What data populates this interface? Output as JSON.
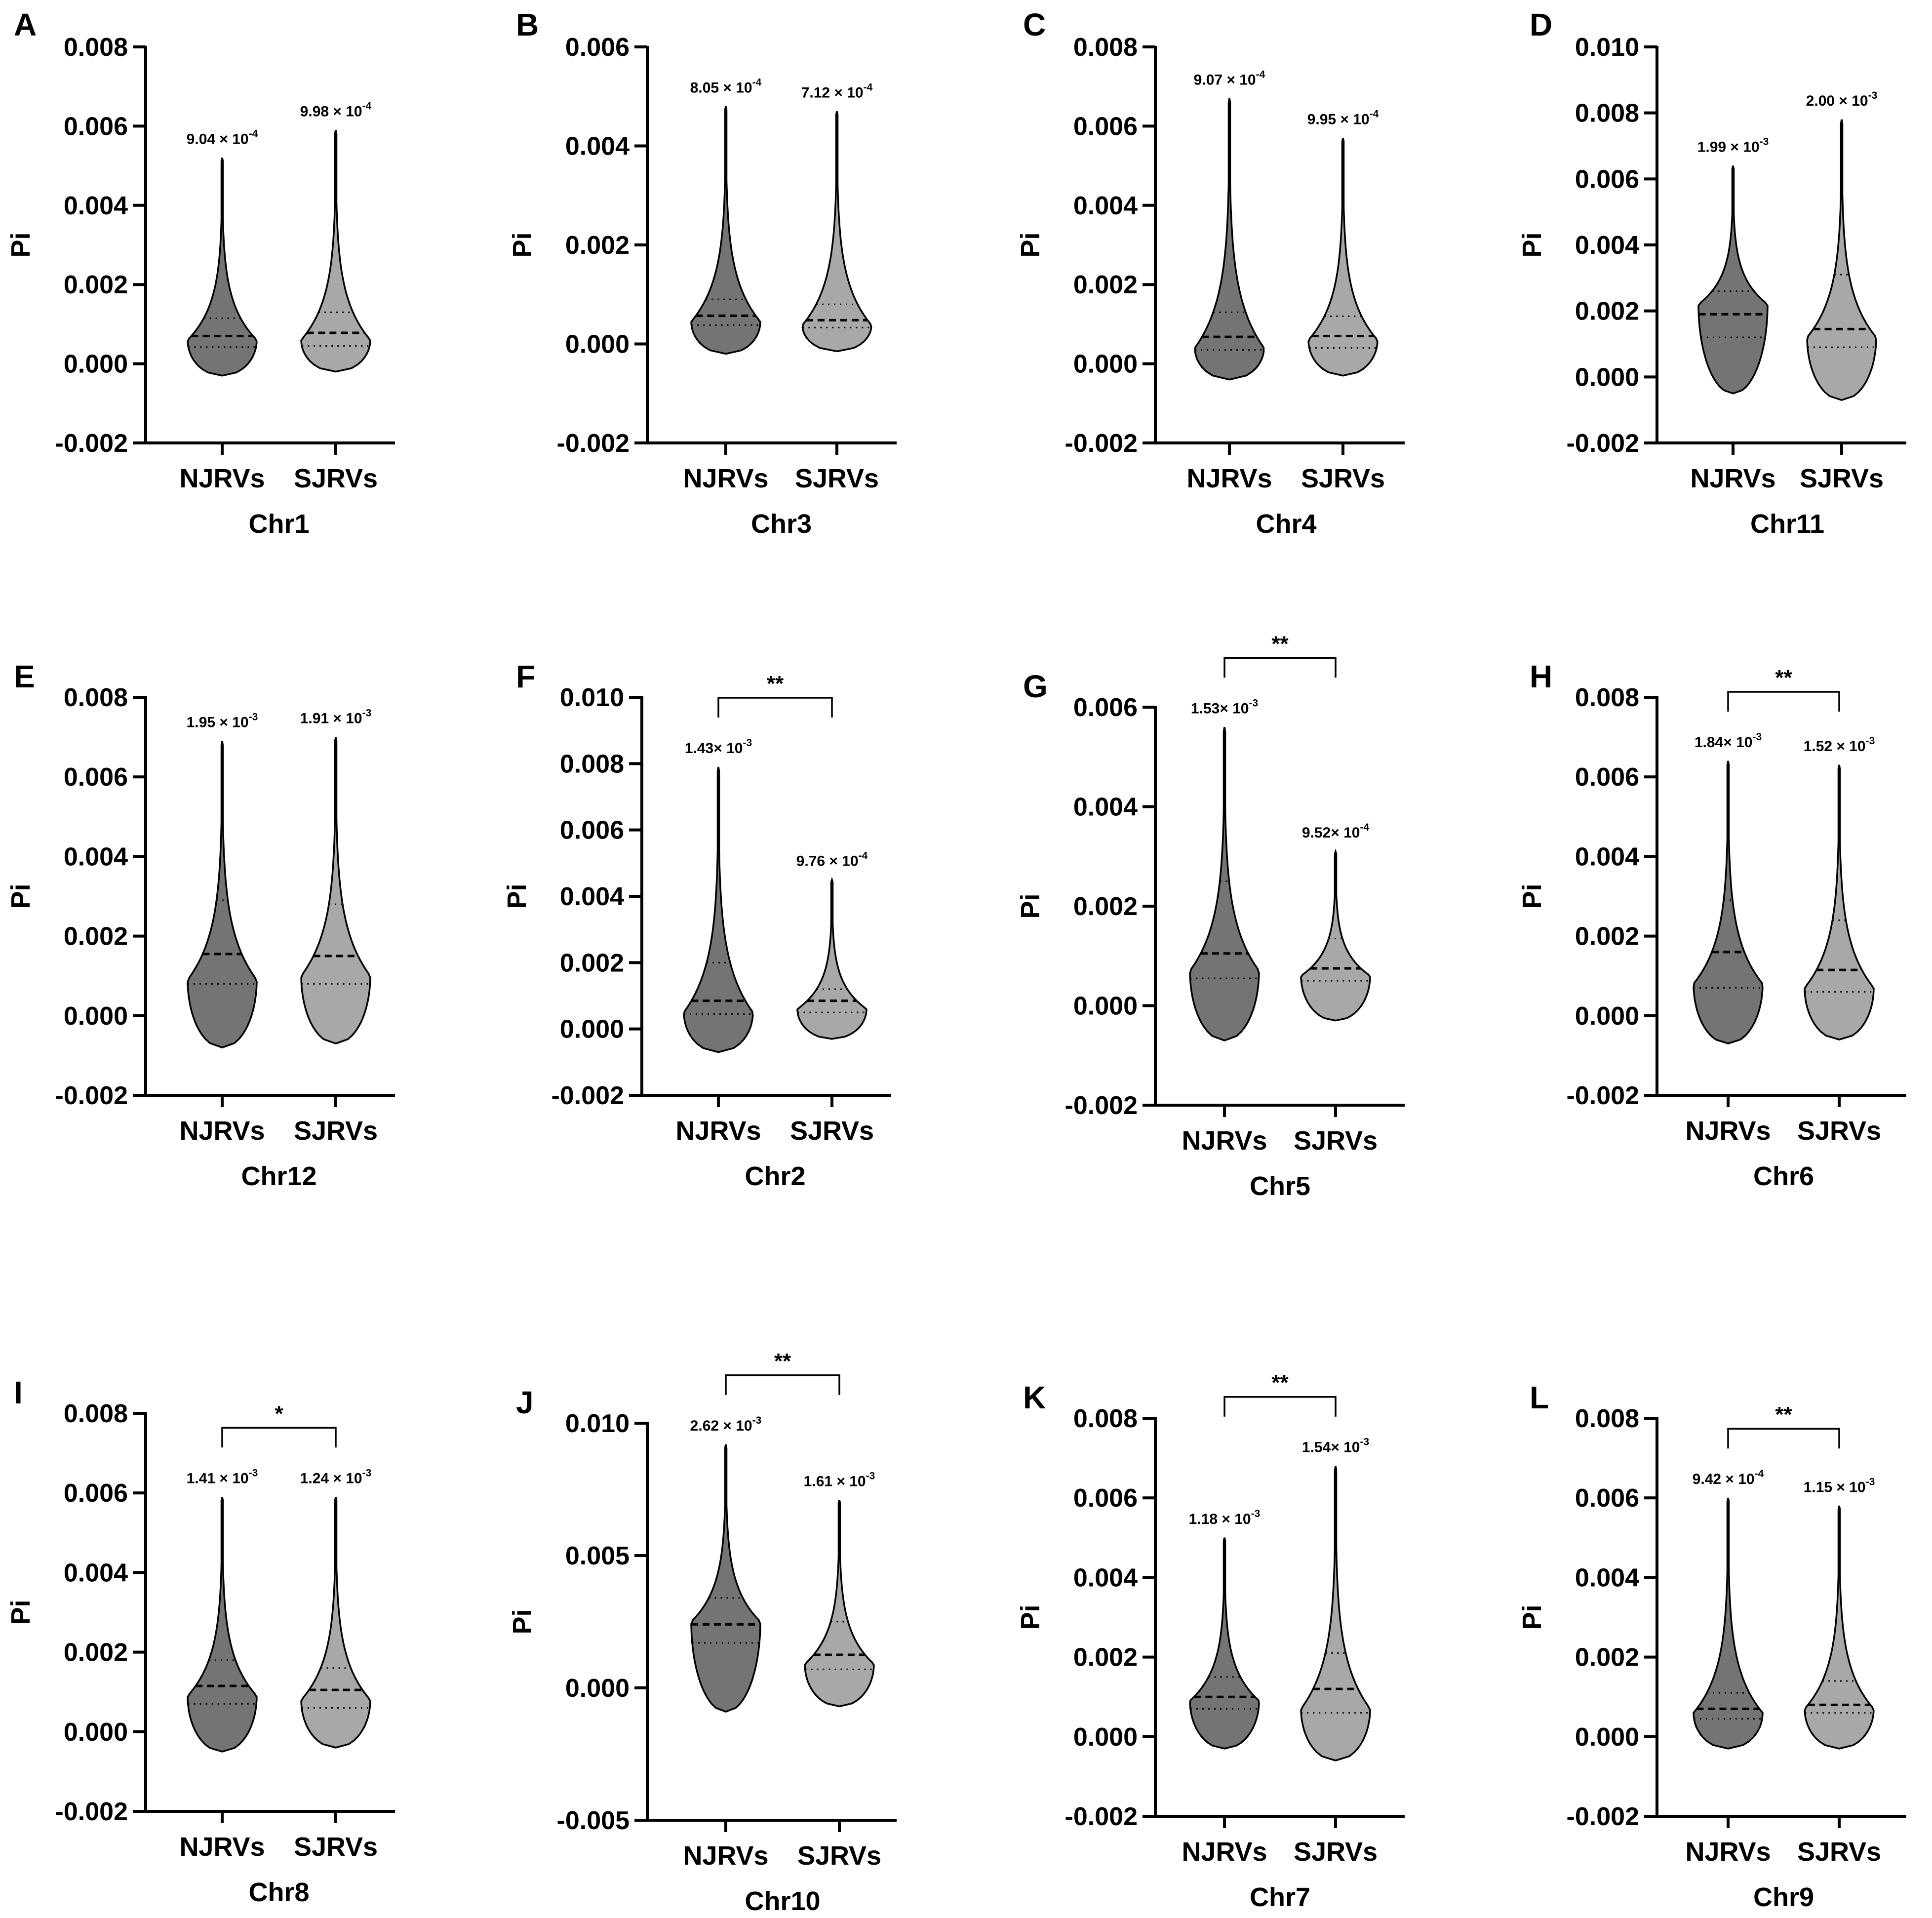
{
  "colors": {
    "njrvs_fill": "#747474",
    "sjrvs_fill": "#a8a8a8",
    "axis": "#000000"
  },
  "chart_data": [
    {
      "panel": "A",
      "type": "violin",
      "title": "",
      "xlabel": "Chr1",
      "ylabel": "Pi",
      "categories": [
        "NJRVs",
        "SJRVs"
      ],
      "ylim": [
        -0.002,
        0.008
      ],
      "yticks": [
        "0.008",
        "0.006",
        "0.004",
        "0.002",
        "0.000",
        "-0.002"
      ],
      "series": [
        {
          "name": "NJRVs",
          "min": -0.0003,
          "max": 0.0052,
          "q1": 0.00042,
          "median": 0.0007,
          "q3": 0.00115,
          "mode": 0.0006,
          "mean_label": "9.04 × 10",
          "mean_exp": "-4"
        },
        {
          "name": "SJRVs",
          "min": -0.0002,
          "max": 0.0059,
          "q1": 0.00045,
          "median": 0.00078,
          "q3": 0.0013,
          "mode": 0.0006,
          "mean_label": "9.98 × 10",
          "mean_exp": "-4"
        }
      ],
      "significance": ""
    },
    {
      "panel": "B",
      "type": "violin",
      "title": "",
      "xlabel": "Chr3",
      "ylabel": "Pi",
      "categories": [
        "NJRVs",
        "SJRVs"
      ],
      "ylim": [
        -0.002,
        0.006
      ],
      "yticks": [
        "0.006",
        "0.004",
        "0.002",
        "0.000",
        "-0.002"
      ],
      "series": [
        {
          "name": "NJRVs",
          "min": -0.0002,
          "max": 0.0048,
          "q1": 0.00038,
          "median": 0.00057,
          "q3": 0.0009,
          "mode": 0.00045,
          "mean_label": "8.05 × 10",
          "mean_exp": "-4"
        },
        {
          "name": "SJRVs",
          "min": -0.00015,
          "max": 0.0047,
          "q1": 0.00033,
          "median": 0.00048,
          "q3": 0.0008,
          "mode": 0.00038,
          "mean_label": "7.12 × 10",
          "mean_exp": "-4"
        }
      ],
      "significance": ""
    },
    {
      "panel": "C",
      "type": "violin",
      "title": "",
      "xlabel": "Chr4",
      "ylabel": "Pi",
      "categories": [
        "NJRVs",
        "SJRVs"
      ],
      "ylim": [
        -0.002,
        0.008
      ],
      "yticks": [
        "0.008",
        "0.006",
        "0.004",
        "0.002",
        "0.000",
        "-0.002"
      ],
      "series": [
        {
          "name": "NJRVs",
          "min": -0.0004,
          "max": 0.0067,
          "q1": 0.00035,
          "median": 0.00068,
          "q3": 0.0013,
          "mode": 0.0004,
          "mean_label": "9.07 × 10",
          "mean_exp": "-4"
        },
        {
          "name": "SJRVs",
          "min": -0.0003,
          "max": 0.0057,
          "q1": 0.0004,
          "median": 0.0007,
          "q3": 0.0012,
          "mode": 0.0006,
          "mean_label": "9.95 × 10",
          "mean_exp": "-4"
        }
      ],
      "significance": ""
    },
    {
      "panel": "D",
      "type": "violin",
      "title": "",
      "xlabel": "Chr11",
      "ylabel": "Pi",
      "categories": [
        "NJRVs",
        "SJRVs"
      ],
      "ylim": [
        -0.002,
        0.01
      ],
      "yticks": [
        "0.010",
        "0.008",
        "0.006",
        "0.004",
        "0.002",
        "0.000",
        "-0.002"
      ],
      "series": [
        {
          "name": "NJRVs",
          "min": -0.0005,
          "max": 0.0064,
          "q1": 0.0012,
          "median": 0.0019,
          "q3": 0.0026,
          "mode": 0.0022,
          "mean_label": "1.99 × 10",
          "mean_exp": "-3"
        },
        {
          "name": "SJRVs",
          "min": -0.0007,
          "max": 0.0078,
          "q1": 0.0009,
          "median": 0.00145,
          "q3": 0.0031,
          "mode": 0.0012,
          "mean_label": "2.00 × 10",
          "mean_exp": "-3"
        }
      ],
      "significance": ""
    },
    {
      "panel": "E",
      "type": "violin",
      "title": "",
      "xlabel": "Chr12",
      "ylabel": "Pi",
      "categories": [
        "NJRVs",
        "SJRVs"
      ],
      "ylim": [
        -0.002,
        0.008
      ],
      "yticks": [
        "0.008",
        "0.006",
        "0.004",
        "0.002",
        "0.000",
        "-0.002"
      ],
      "series": [
        {
          "name": "NJRVs",
          "min": -0.0008,
          "max": 0.0069,
          "q1": 0.0008,
          "median": 0.00155,
          "q3": 0.0029,
          "mode": 0.0009,
          "mean_label": "1.95 × 10",
          "mean_exp": "-3"
        },
        {
          "name": "SJRVs",
          "min": -0.0007,
          "max": 0.007,
          "q1": 0.0008,
          "median": 0.0015,
          "q3": 0.0028,
          "mode": 0.001,
          "mean_label": "1.91 × 10",
          "mean_exp": "-3"
        }
      ],
      "significance": ""
    },
    {
      "panel": "F",
      "type": "violin",
      "title": "",
      "xlabel": "Chr2",
      "ylabel": "Pi",
      "categories": [
        "NJRVs",
        "SJRVs"
      ],
      "ylim": [
        -0.002,
        0.01
      ],
      "yticks": [
        "0.010",
        "0.008",
        "0.006",
        "0.004",
        "0.002",
        "0.000",
        "-0.002"
      ],
      "series": [
        {
          "name": "NJRVs",
          "min": -0.0007,
          "max": 0.0079,
          "q1": 0.00045,
          "median": 0.00085,
          "q3": 0.002,
          "mode": 0.0005,
          "mean_label": "1.43× 10",
          "mean_exp": "-3"
        },
        {
          "name": "SJRVs",
          "min": -0.0003,
          "max": 0.0045,
          "q1": 0.0005,
          "median": 0.00085,
          "q3": 0.0012,
          "mode": 0.0006,
          "mean_label": "9.76 × 10",
          "mean_exp": "-4"
        }
      ],
      "significance": "**"
    },
    {
      "panel": "G",
      "type": "violin",
      "title": "",
      "xlabel": "Chr5",
      "ylabel": "Pi",
      "categories": [
        "NJRVs",
        "SJRVs"
      ],
      "ylim": [
        -0.002,
        0.006
      ],
      "yticks": [
        "0.006",
        "0.004",
        "0.002",
        "0.000",
        "-0.002"
      ],
      "series": [
        {
          "name": "NJRVs",
          "min": -0.0007,
          "max": 0.0056,
          "q1": 0.00055,
          "median": 0.00105,
          "q3": 0.0025,
          "mode": 0.0007,
          "mean_label": "1.53× 10",
          "mean_exp": "-3"
        },
        {
          "name": "SJRVs",
          "min": -0.0003,
          "max": 0.0031,
          "q1": 0.0005,
          "median": 0.00075,
          "q3": 0.00135,
          "mode": 0.0006,
          "mean_label": "9.52× 10",
          "mean_exp": "-4"
        }
      ],
      "significance": "**"
    },
    {
      "panel": "H",
      "type": "violin",
      "title": "",
      "xlabel": "Chr6",
      "ylabel": "Pi",
      "categories": [
        "NJRVs",
        "SJRVs"
      ],
      "ylim": [
        -0.002,
        0.008
      ],
      "yticks": [
        "0.008",
        "0.006",
        "0.004",
        "0.002",
        "0.000",
        "-0.002"
      ],
      "series": [
        {
          "name": "NJRVs",
          "min": -0.0007,
          "max": 0.0064,
          "q1": 0.0007,
          "median": 0.0016,
          "q3": 0.0029,
          "mode": 0.0008,
          "mean_label": "1.84× 10",
          "mean_exp": "-3"
        },
        {
          "name": "SJRVs",
          "min": -0.0006,
          "max": 0.0063,
          "q1": 0.0006,
          "median": 0.00115,
          "q3": 0.0024,
          "mode": 0.0007,
          "mean_label": "1.52 × 10",
          "mean_exp": "-3"
        }
      ],
      "significance": "**"
    },
    {
      "panel": "I",
      "type": "violin",
      "title": "",
      "xlabel": "Chr8",
      "ylabel": "Pi",
      "categories": [
        "NJRVs",
        "SJRVs"
      ],
      "ylim": [
        -0.002,
        0.008
      ],
      "yticks": [
        "0.008",
        "0.006",
        "0.004",
        "0.002",
        "0.000",
        "-0.002"
      ],
      "series": [
        {
          "name": "NJRVs",
          "min": -0.0005,
          "max": 0.0059,
          "q1": 0.0007,
          "median": 0.00115,
          "q3": 0.0018,
          "mode": 0.0009,
          "mean_label": "1.41 × 10",
          "mean_exp": "-3"
        },
        {
          "name": "SJRVs",
          "min": -0.0004,
          "max": 0.0059,
          "q1": 0.0006,
          "median": 0.00105,
          "q3": 0.0016,
          "mode": 0.0008,
          "mean_label": "1.24 × 10",
          "mean_exp": "-3"
        }
      ],
      "significance": "*"
    },
    {
      "panel": "J",
      "type": "violin",
      "title": "",
      "xlabel": "Chr10",
      "ylabel": "Pi",
      "categories": [
        "NJRVs",
        "SJRVs"
      ],
      "ylim": [
        -0.005,
        0.01
      ],
      "yticks": [
        "0.010",
        "0.005",
        "0.000",
        "-0.005"
      ],
      "series": [
        {
          "name": "NJRVs",
          "min": -0.0009,
          "max": 0.0092,
          "q1": 0.0017,
          "median": 0.0024,
          "q3": 0.0034,
          "mode": 0.0025,
          "mean_label": "2.62 × 10",
          "mean_exp": "-3"
        },
        {
          "name": "SJRVs",
          "min": -0.0007,
          "max": 0.0071,
          "q1": 0.0007,
          "median": 0.00125,
          "q3": 0.0025,
          "mode": 0.0009,
          "mean_label": "1.61 × 10",
          "mean_exp": "-3"
        }
      ],
      "significance": "**"
    },
    {
      "panel": "K",
      "type": "violin",
      "title": "",
      "xlabel": "Chr7",
      "ylabel": "Pi",
      "categories": [
        "NJRVs",
        "SJRVs"
      ],
      "ylim": [
        -0.002,
        0.008
      ],
      "yticks": [
        "0.008",
        "0.006",
        "0.004",
        "0.002",
        "0.000",
        "-0.002"
      ],
      "series": [
        {
          "name": "NJRVs",
          "min": -0.0003,
          "max": 0.005,
          "q1": 0.0007,
          "median": 0.001,
          "q3": 0.0015,
          "mode": 0.0009,
          "mean_label": "1.18 × 10",
          "mean_exp": "-3"
        },
        {
          "name": "SJRVs",
          "min": -0.0006,
          "max": 0.0068,
          "q1": 0.0006,
          "median": 0.0012,
          "q3": 0.0021,
          "mode": 0.0007,
          "mean_label": "1.54× 10",
          "mean_exp": "-3"
        }
      ],
      "significance": "**"
    },
    {
      "panel": "L",
      "type": "violin",
      "title": "",
      "xlabel": "Chr9",
      "ylabel": "Pi",
      "categories": [
        "NJRVs",
        "SJRVs"
      ],
      "ylim": [
        -0.002,
        0.008
      ],
      "yticks": [
        "0.008",
        "0.006",
        "0.004",
        "0.002",
        "0.000",
        "-0.002"
      ],
      "series": [
        {
          "name": "NJRVs",
          "min": -0.0003,
          "max": 0.006,
          "q1": 0.00045,
          "median": 0.0007,
          "q3": 0.0011,
          "mode": 0.0006,
          "mean_label": "9.42 × 10",
          "mean_exp": "-4"
        },
        {
          "name": "SJRVs",
          "min": -0.0003,
          "max": 0.0058,
          "q1": 0.0006,
          "median": 0.0008,
          "q3": 0.0014,
          "mode": 0.0007,
          "mean_label": "1.15 × 10",
          "mean_exp": "-3"
        }
      ],
      "significance": "**"
    }
  ]
}
